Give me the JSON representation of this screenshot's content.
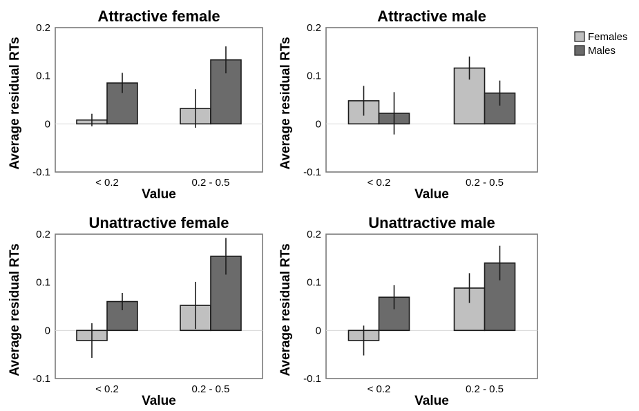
{
  "legend": {
    "placement": "top-right",
    "entries": [
      {
        "label": "Females",
        "color": "#c0c0c0"
      },
      {
        "label": "Males",
        "color": "#6b6b6b"
      }
    ]
  },
  "chart_data": [
    {
      "type": "bar",
      "title": "Attractive female",
      "xlabel": "Value",
      "ylabel": "Average residual RTs",
      "categories": [
        "< 0.2",
        "0.2 - 0.5"
      ],
      "ylim": [
        -0.1,
        0.2
      ],
      "yticks": [
        "-0.1",
        "0",
        "0.1",
        "0.2"
      ],
      "grid": false,
      "series": [
        {
          "name": "Females",
          "values": [
            0.008,
            0.032
          ],
          "errors": [
            0.013,
            0.04
          ]
        },
        {
          "name": "Males",
          "values": [
            0.085,
            0.133
          ],
          "errors": [
            0.021,
            0.028
          ]
        }
      ]
    },
    {
      "type": "bar",
      "title": "Attractive male",
      "xlabel": "Value",
      "ylabel": "Average residual RTs",
      "categories": [
        "< 0.2",
        "0.2 - 0.5"
      ],
      "ylim": [
        -0.1,
        0.2
      ],
      "yticks": [
        "-0.1",
        "0",
        "0.1",
        "0.2"
      ],
      "grid": false,
      "series": [
        {
          "name": "Females",
          "values": [
            0.048,
            0.116
          ],
          "errors": [
            0.031,
            0.024
          ]
        },
        {
          "name": "Males",
          "values": [
            0.022,
            0.064
          ],
          "errors": [
            0.044,
            0.026
          ]
        }
      ]
    },
    {
      "type": "bar",
      "title": "Unattractive female",
      "xlabel": "Value",
      "ylabel": "Average residual RTs",
      "categories": [
        "< 0.2",
        "0.2 - 0.5"
      ],
      "ylim": [
        -0.1,
        0.2
      ],
      "yticks": [
        "-0.1",
        "0",
        "0.1",
        "0.2"
      ],
      "grid": false,
      "series": [
        {
          "name": "Females",
          "values": [
            -0.021,
            0.052
          ],
          "errors": [
            0.036,
            0.049
          ]
        },
        {
          "name": "Males",
          "values": [
            0.06,
            0.154
          ],
          "errors": [
            0.018,
            0.038
          ]
        }
      ]
    },
    {
      "type": "bar",
      "title": "Unattractive male",
      "xlabel": "Value",
      "ylabel": "Average residual RTs",
      "categories": [
        "< 0.2",
        "0.2 - 0.5"
      ],
      "ylim": [
        -0.1,
        0.2
      ],
      "yticks": [
        "-0.1",
        "0",
        "0.1",
        "0.2"
      ],
      "grid": false,
      "series": [
        {
          "name": "Females",
          "values": [
            -0.021,
            0.088
          ],
          "errors": [
            0.031,
            0.031
          ]
        },
        {
          "name": "Males",
          "values": [
            0.069,
            0.14
          ],
          "errors": [
            0.025,
            0.036
          ]
        }
      ]
    }
  ]
}
